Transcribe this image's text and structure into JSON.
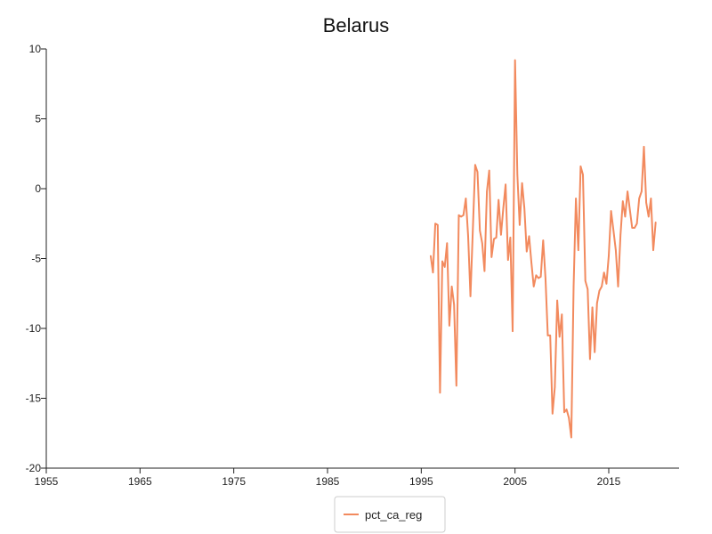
{
  "chart_data": {
    "type": "line",
    "title": "Belarus",
    "xlabel": "",
    "ylabel": "",
    "xlim": [
      1955,
      2022.5
    ],
    "ylim": [
      -20,
      10
    ],
    "x_ticks": [
      "1955",
      "1965",
      "1975",
      "1985",
      "1995",
      "2005",
      "2015"
    ],
    "y_ticks": [
      "10",
      "5",
      "0",
      "-5",
      "-10",
      "-15",
      "-20"
    ],
    "grid": false,
    "legend_position": "bottom-center",
    "series": [
      {
        "name": "pct_ca_reg",
        "color": "#f28a5e",
        "points": [
          [
            1996.0,
            -4.8
          ],
          [
            1996.25,
            -6.0
          ],
          [
            1996.5,
            -2.5
          ],
          [
            1996.75,
            -2.6
          ],
          [
            1997.0,
            -14.6
          ],
          [
            1997.25,
            -5.2
          ],
          [
            1997.5,
            -5.6
          ],
          [
            1997.75,
            -3.9
          ],
          [
            1998.0,
            -9.8
          ],
          [
            1998.25,
            -7.0
          ],
          [
            1998.5,
            -8.3
          ],
          [
            1998.75,
            -14.1
          ],
          [
            1999.0,
            -1.9
          ],
          [
            1999.25,
            -2.0
          ],
          [
            1999.5,
            -1.9
          ],
          [
            1999.75,
            -0.7
          ],
          [
            2000.0,
            -3.4
          ],
          [
            2000.25,
            -7.7
          ],
          [
            2000.5,
            -2.9
          ],
          [
            2000.75,
            1.7
          ],
          [
            2001.0,
            1.2
          ],
          [
            2001.25,
            -3.0
          ],
          [
            2001.5,
            -3.9
          ],
          [
            2001.75,
            -5.9
          ],
          [
            2002.0,
            -0.2
          ],
          [
            2002.25,
            1.3
          ],
          [
            2002.5,
            -4.9
          ],
          [
            2002.75,
            -3.6
          ],
          [
            2003.0,
            -3.5
          ],
          [
            2003.25,
            -0.8
          ],
          [
            2003.5,
            -3.3
          ],
          [
            2003.75,
            -1.4
          ],
          [
            2004.0,
            0.3
          ],
          [
            2004.25,
            -5.1
          ],
          [
            2004.5,
            -3.5
          ],
          [
            2004.75,
            -10.2
          ],
          [
            2005.0,
            9.2
          ],
          [
            2005.25,
            1.0
          ],
          [
            2005.5,
            -2.6
          ],
          [
            2005.75,
            0.4
          ],
          [
            2006.0,
            -1.4
          ],
          [
            2006.25,
            -4.5
          ],
          [
            2006.5,
            -3.4
          ],
          [
            2006.75,
            -5.3
          ],
          [
            2007.0,
            -7.0
          ],
          [
            2007.25,
            -6.2
          ],
          [
            2007.5,
            -6.4
          ],
          [
            2007.75,
            -6.3
          ],
          [
            2008.0,
            -3.7
          ],
          [
            2008.25,
            -6.4
          ],
          [
            2008.5,
            -10.5
          ],
          [
            2008.75,
            -10.5
          ],
          [
            2009.0,
            -16.1
          ],
          [
            2009.25,
            -14.2
          ],
          [
            2009.5,
            -8.0
          ],
          [
            2009.75,
            -10.6
          ],
          [
            2010.0,
            -9.0
          ],
          [
            2010.25,
            -16.0
          ],
          [
            2010.5,
            -15.8
          ],
          [
            2010.75,
            -16.4
          ],
          [
            2011.0,
            -17.8
          ],
          [
            2011.25,
            -7.0
          ],
          [
            2011.5,
            -0.7
          ],
          [
            2011.75,
            -4.4
          ],
          [
            2012.0,
            1.6
          ],
          [
            2012.25,
            1.0
          ],
          [
            2012.5,
            -6.6
          ],
          [
            2012.75,
            -7.2
          ],
          [
            2013.0,
            -12.2
          ],
          [
            2013.25,
            -8.5
          ],
          [
            2013.5,
            -11.7
          ],
          [
            2013.75,
            -8.2
          ],
          [
            2014.0,
            -7.3
          ],
          [
            2014.25,
            -7.0
          ],
          [
            2014.5,
            -6.0
          ],
          [
            2014.75,
            -6.8
          ],
          [
            2015.0,
            -4.8
          ],
          [
            2015.25,
            -1.6
          ],
          [
            2015.5,
            -3.0
          ],
          [
            2015.75,
            -4.4
          ],
          [
            2016.0,
            -7.0
          ],
          [
            2016.25,
            -3.3
          ],
          [
            2016.5,
            -0.9
          ],
          [
            2016.75,
            -2.0
          ],
          [
            2017.0,
            -0.2
          ],
          [
            2017.25,
            -1.5
          ],
          [
            2017.5,
            -2.8
          ],
          [
            2017.75,
            -2.8
          ],
          [
            2018.0,
            -2.5
          ],
          [
            2018.25,
            -0.7
          ],
          [
            2018.5,
            -0.2
          ],
          [
            2018.75,
            3.0
          ],
          [
            2019.0,
            -1.0
          ],
          [
            2019.25,
            -2.0
          ],
          [
            2019.5,
            -0.7
          ],
          [
            2019.75,
            -4.4
          ],
          [
            2020.0,
            -2.4
          ]
        ]
      }
    ]
  }
}
